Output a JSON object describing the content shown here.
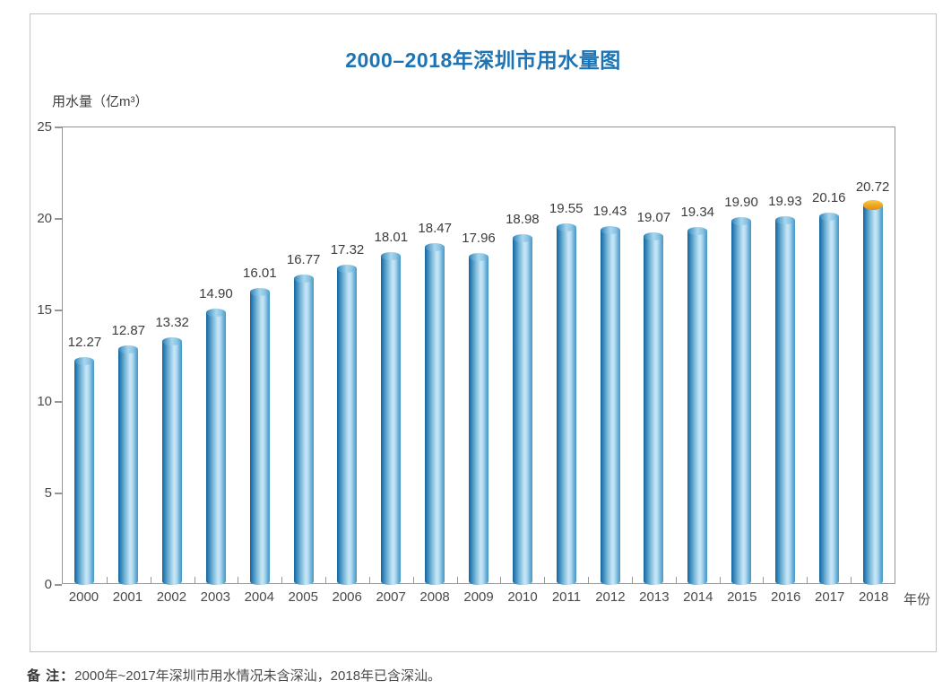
{
  "title": "2000–2018年深圳市用水量图",
  "y_axis_title": "用水量（亿m³）",
  "x_axis_suffix": "年份",
  "footnote": {
    "label": "备 注：",
    "text": "2000年~2017年深圳市用水情况未含深汕，2018年已含深汕。"
  },
  "colors": {
    "title_blue": "#1d74b5",
    "bar_dark_blue": "#15639c",
    "bar_light_blue": "#c8e7f7",
    "highlight_cap_orange": "#eda525",
    "axis_gray": "#969696",
    "text_gray": "#4a4a4a"
  },
  "chart_data": {
    "type": "bar",
    "title": "2000–2018年深圳市用水量图",
    "ylabel": "用水量（亿m³）",
    "xlabel": "年份",
    "categories": [
      "2000",
      "2001",
      "2002",
      "2003",
      "2004",
      "2005",
      "2006",
      "2007",
      "2008",
      "2009",
      "2010",
      "2011",
      "2012",
      "2013",
      "2014",
      "2015",
      "2016",
      "2017",
      "2018"
    ],
    "values": [
      12.27,
      12.87,
      13.32,
      14.9,
      16.01,
      16.77,
      17.32,
      18.01,
      18.47,
      17.96,
      18.98,
      19.55,
      19.43,
      19.07,
      19.34,
      19.9,
      19.93,
      20.16,
      20.72
    ],
    "value_labels": [
      "12.27",
      "12.87",
      "13.32",
      "14.90",
      "16.01",
      "16.77",
      "17.32",
      "18.01",
      "18.47",
      "17.96",
      "18.98",
      "19.55",
      "19.43",
      "19.07",
      "19.34",
      "19.90",
      "19.93",
      "20.16",
      "20.72"
    ],
    "ylim": [
      0,
      25
    ],
    "yticks": [
      0,
      5,
      10,
      15,
      20,
      25
    ],
    "grid": "off",
    "legend": "none",
    "highlighted_category": "2018",
    "highlight_note": "2018 bar has an orange cap"
  }
}
